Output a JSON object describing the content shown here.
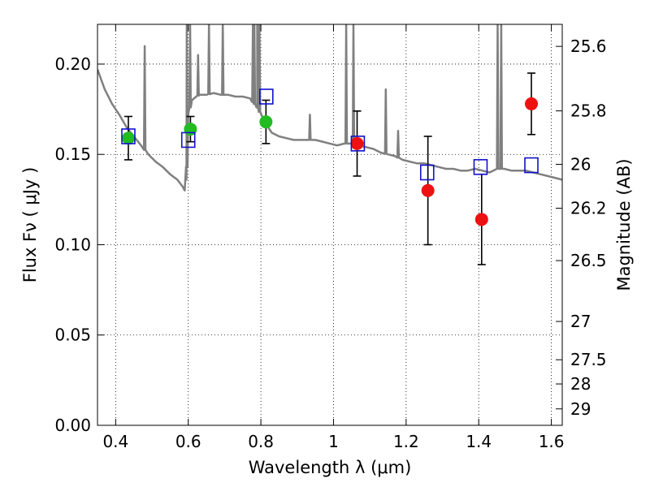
{
  "chart_data": {
    "type": "scatter",
    "xlabel": "Wavelength  λ (μm)",
    "ylabel": "Flux  Fν  ( μJy )",
    "ylabel2": "Magnitude (AB)",
    "xlim": [
      0.35,
      1.63
    ],
    "ylim": [
      0.0,
      0.222
    ],
    "x_ticks": [
      0.4,
      0.6,
      0.8,
      1.0,
      1.2,
      1.4,
      1.6
    ],
    "x_tick_labels": [
      "0.4",
      "0.6",
      "0.8",
      "1",
      "1.2",
      "1.4",
      "1.6"
    ],
    "y_ticks": [
      0.0,
      0.05,
      0.1,
      0.15,
      0.2
    ],
    "y_tick_labels": [
      "0.00",
      "0.05",
      "0.10",
      "0.15",
      "0.20"
    ],
    "mag_ticks": [
      {
        "flux": 0.2098,
        "label": "25.6"
      },
      {
        "flux": 0.1741,
        "label": "25.8"
      },
      {
        "flux": 0.1445,
        "label": "26"
      },
      {
        "flux": 0.1202,
        "label": "26.2"
      },
      {
        "flux": 0.0912,
        "label": "26.5"
      },
      {
        "flux": 0.0575,
        "label": "27"
      },
      {
        "flux": 0.0363,
        "label": "27.5"
      },
      {
        "flux": 0.0229,
        "label": "28"
      },
      {
        "flux": 0.0091,
        "label": "29"
      }
    ],
    "grid": true,
    "grid_style": "dotted",
    "colors": {
      "model_line": "#808080",
      "green_points": "#22bb22",
      "red_points": "#ee1111",
      "model_boxes": "#1111cc",
      "errorbars": "#000000"
    },
    "series": [
      {
        "marker": "circle",
        "color": "green",
        "points": [
          {
            "x": 0.435,
            "y": 0.159,
            "yerr": 0.012
          },
          {
            "x": 0.606,
            "y": 0.164,
            "yerr": 0.007
          },
          {
            "x": 0.814,
            "y": 0.168,
            "yerr": 0.012
          }
        ]
      },
      {
        "marker": "circle",
        "color": "red",
        "points": [
          {
            "x": 1.065,
            "y": 0.156,
            "yerr": 0.018
          },
          {
            "x": 1.26,
            "y": 0.13,
            "yerr": 0.03
          },
          {
            "x": 1.408,
            "y": 0.114,
            "yerr": 0.025
          },
          {
            "x": 1.545,
            "y": 0.178,
            "yerr": 0.017
          }
        ]
      },
      {
        "marker": "open-square",
        "color": "blue",
        "points": [
          {
            "x": 0.435,
            "y": 0.16
          },
          {
            "x": 0.6,
            "y": 0.158
          },
          {
            "x": 0.815,
            "y": 0.182
          },
          {
            "x": 1.067,
            "y": 0.156
          },
          {
            "x": 1.258,
            "y": 0.14
          },
          {
            "x": 1.405,
            "y": 0.143
          },
          {
            "x": 1.545,
            "y": 0.144
          }
        ]
      },
      {
        "marker": "line",
        "color": "gray",
        "x": [
          0.35,
          0.37,
          0.39,
          0.41,
          0.43,
          0.45,
          0.47,
          0.49,
          0.51,
          0.53,
          0.55,
          0.57,
          0.585,
          0.59,
          0.595,
          0.6,
          0.61,
          0.63,
          0.65,
          0.67,
          0.69,
          0.71,
          0.73,
          0.75,
          0.77,
          0.79,
          0.81,
          0.83,
          0.85,
          0.87,
          0.89,
          0.91,
          0.93,
          0.95,
          0.97,
          0.99,
          1.01,
          1.03,
          1.05,
          1.07,
          1.09,
          1.11,
          1.13,
          1.15,
          1.17,
          1.19,
          1.21,
          1.23,
          1.25,
          1.27,
          1.29,
          1.31,
          1.33,
          1.35,
          1.37,
          1.39,
          1.41,
          1.43,
          1.45,
          1.47,
          1.49,
          1.51,
          1.53,
          1.55,
          1.57,
          1.59,
          1.61,
          1.63
        ],
        "y": [
          0.197,
          0.186,
          0.178,
          0.172,
          0.165,
          0.16,
          0.155,
          0.15,
          0.146,
          0.143,
          0.139,
          0.136,
          0.132,
          0.13,
          0.136,
          0.172,
          0.18,
          0.183,
          0.183,
          0.184,
          0.183,
          0.183,
          0.182,
          0.182,
          0.181,
          0.176,
          0.168,
          0.162,
          0.16,
          0.159,
          0.158,
          0.158,
          0.158,
          0.158,
          0.157,
          0.156,
          0.155,
          0.156,
          0.156,
          0.155,
          0.154,
          0.153,
          0.151,
          0.15,
          0.149,
          0.147,
          0.146,
          0.145,
          0.145,
          0.144,
          0.143,
          0.142,
          0.142,
          0.141,
          0.141,
          0.142,
          0.141,
          0.14,
          0.142,
          0.142,
          0.141,
          0.141,
          0.141,
          0.14,
          0.139,
          0.138,
          0.137,
          0.136
        ],
        "emission_lines": [
          {
            "x": 0.48,
            "peak": 0.21
          },
          {
            "x": 0.596,
            "peak": 0.222
          },
          {
            "x": 0.605,
            "peak": 0.222
          },
          {
            "x": 0.627,
            "peak": 0.205
          },
          {
            "x": 0.657,
            "peak": 0.222
          },
          {
            "x": 0.695,
            "peak": 0.222
          },
          {
            "x": 0.778,
            "peak": 0.222
          },
          {
            "x": 0.782,
            "peak": 0.222
          },
          {
            "x": 0.79,
            "peak": 0.222
          },
          {
            "x": 0.796,
            "peak": 0.222
          },
          {
            "x": 0.935,
            "peak": 0.172
          },
          {
            "x": 1.035,
            "peak": 0.222
          },
          {
            "x": 1.055,
            "peak": 0.222
          },
          {
            "x": 1.144,
            "peak": 0.186
          },
          {
            "x": 1.178,
            "peak": 0.163
          },
          {
            "x": 1.452,
            "peak": 0.222
          },
          {
            "x": 1.462,
            "peak": 0.222
          }
        ]
      }
    ]
  }
}
